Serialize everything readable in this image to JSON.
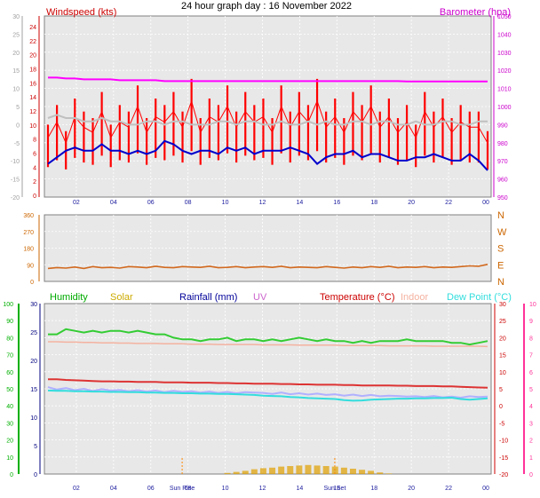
{
  "title": "24 hour graph day : 16 November 2022",
  "colors": {
    "windspeed": "#ff0000",
    "windavg": "#c0c0c0",
    "windlow": "#0000cc",
    "barometer": "#ff00ff",
    "direction": "#d2691e",
    "humidity": "#00b000",
    "humidity_line": "#33cc33",
    "solar": "#e0a000",
    "rainfall": "#000099",
    "uv": "#cc66cc",
    "temperature": "#cc0000",
    "indoor": "#f4b2a0",
    "dewpoint": "#33dddd",
    "apparent": "#b0b0ff",
    "axis_blue": "#2020a0",
    "axis_left_hum": "#00b000",
    "axis_right_pink": "#ff3399"
  },
  "chart_data": [
    {
      "type": "line",
      "panel": "wind-barometer",
      "left_label": "Windspeed (kts)",
      "right_label": "Barometer (hpa)",
      "left_ticks_outer": [
        "30",
        "25",
        "20",
        "15",
        "10",
        "5",
        "0",
        "-5",
        "-10",
        "-15",
        "-20"
      ],
      "left_ticks_inner": [
        "24",
        "22",
        "20",
        "18",
        "16",
        "14",
        "12",
        "10",
        "8",
        "6",
        "4",
        "2",
        "0"
      ],
      "right_ticks": [
        "1050",
        "1040",
        "1030",
        "1020",
        "1010",
        "1000",
        "990",
        "980",
        "970",
        "960",
        "950"
      ],
      "x_ticks": [
        "02",
        "04",
        "06",
        "08",
        "10",
        "12",
        "14",
        "16",
        "18",
        "20",
        "22",
        "00"
      ],
      "ylim": [
        0,
        25
      ],
      "baro_ylim": [
        950,
        1050
      ],
      "series": [
        {
          "key": "gust",
          "values": [
            10,
            13,
            9,
            14,
            12,
            11,
            15,
            10,
            13,
            12,
            16,
            11,
            14,
            13,
            15,
            12,
            17,
            11,
            14,
            13,
            16,
            12,
            15,
            13,
            14,
            11,
            16,
            12,
            15,
            13,
            17,
            12,
            14,
            11,
            15,
            13,
            16,
            12,
            14,
            11,
            13,
            10,
            15,
            12,
            14,
            11,
            13,
            12,
            12,
            9
          ]
        },
        {
          "key": "avg",
          "values": [
            11,
            11.5,
            11,
            11,
            10.5,
            10.5,
            11,
            10.5,
            10.5,
            10,
            10,
            10.5,
            10.5,
            10,
            10.5,
            10.5,
            10,
            10,
            10,
            10.5,
            10.5,
            10,
            10.5,
            10.5,
            10,
            10,
            10.5,
            10,
            10,
            10.5,
            10,
            10.5,
            10,
            10,
            10.5,
            10.5,
            10,
            10.5,
            10.5,
            10,
            10,
            10.5,
            10,
            10,
            10.5,
            10.5,
            10,
            10,
            10.5,
            10.5
          ]
        },
        {
          "key": "low",
          "values": [
            4,
            5,
            6,
            6.5,
            6,
            6,
            7,
            6,
            6,
            5.5,
            6,
            5.5,
            6,
            7.5,
            7,
            6,
            5.5,
            6,
            6,
            5.5,
            6.5,
            6,
            6.5,
            5.5,
            6,
            6,
            6,
            6.5,
            6,
            5.5,
            4,
            5,
            5.5,
            5.5,
            6,
            5,
            5.5,
            5.5,
            5,
            4.5,
            4.5,
            5,
            5,
            5.5,
            5,
            4.5,
            4.5,
            5.5,
            4.5,
            3
          ]
        },
        {
          "key": "baro",
          "values": [
            1016,
            1016,
            1015.5,
            1015.5,
            1015,
            1015,
            1015,
            1015,
            1014.5,
            1014.5,
            1014.5,
            1014.5,
            1014.5,
            1014,
            1014,
            1014,
            1014,
            1014,
            1014,
            1014,
            1014,
            1014,
            1014,
            1014,
            1014,
            1014,
            1014,
            1014,
            1014,
            1014,
            1014,
            1014,
            1014,
            1014,
            1014,
            1014,
            1014,
            1014,
            1014,
            1014,
            1013.8,
            1013.8,
            1013.8,
            1013.8,
            1013.8,
            1013.8,
            1013.8,
            1013.8,
            1013.8,
            1013.8
          ]
        }
      ]
    },
    {
      "type": "line",
      "panel": "wind-direction",
      "left_ticks": [
        "360",
        "270",
        "180",
        "90",
        "0"
      ],
      "right_ticks": [
        "N",
        "W",
        "S",
        "E",
        "N"
      ],
      "ylim": [
        0,
        360
      ],
      "series": [
        {
          "key": "dir",
          "values": [
            70,
            75,
            72,
            78,
            70,
            80,
            74,
            76,
            72,
            80,
            78,
            74,
            82,
            76,
            74,
            80,
            78,
            76,
            82,
            74,
            76,
            80,
            74,
            78,
            80,
            76,
            82,
            74,
            78,
            76,
            74,
            80,
            76,
            72,
            78,
            74,
            80,
            76,
            82,
            74,
            78,
            76,
            80,
            74,
            78,
            76,
            80,
            84,
            82,
            92
          ]
        }
      ]
    },
    {
      "type": "line",
      "panel": "climate",
      "legend": [
        "Humidity",
        "Solar",
        "Rainfall (mm)",
        "UV",
        "Temperature (°C)",
        "Indoor",
        "Dew Point (°C)"
      ],
      "left_outer_ticks": [
        "100",
        "90",
        "80",
        "70",
        "60",
        "50",
        "40",
        "30",
        "20",
        "10",
        "0"
      ],
      "left_inner_ticks": [
        "30",
        "25",
        "20",
        "15",
        "10",
        "5",
        "0"
      ],
      "right_inner_ticks": [
        "30",
        "25",
        "20",
        "15",
        "10",
        "5",
        "0",
        "-5",
        "-10",
        "-15",
        "-20"
      ],
      "right_outer_ticks": [
        "10",
        "9",
        "8",
        "7",
        "6",
        "5",
        "4",
        "3",
        "2",
        "1",
        "0"
      ],
      "x_ticks": [
        "02",
        "04",
        "06",
        "08",
        "10",
        "12",
        "14",
        "16",
        "18",
        "20",
        "22",
        "00"
      ],
      "sun_labels": [
        "Sun Rise",
        "Sun Set"
      ],
      "temp_ylim": [
        -20,
        30
      ],
      "humidity_ylim": [
        0,
        100
      ],
      "series": [
        {
          "key": "humidity",
          "values": [
            82,
            82,
            85,
            84,
            83,
            84,
            83,
            84,
            84,
            83,
            84,
            83,
            82,
            82,
            80,
            79,
            79,
            78,
            79,
            79,
            80,
            78,
            79,
            79,
            78,
            79,
            78,
            79,
            80,
            79,
            78,
            79,
            78,
            78,
            77,
            78,
            77,
            78,
            78,
            78,
            79,
            78,
            78,
            78,
            78,
            77,
            77,
            76,
            77,
            78
          ]
        },
        {
          "key": "indoor",
          "values": [
            18.8,
            18.8,
            18.7,
            18.7,
            18.6,
            18.6,
            18.5,
            18.5,
            18.4,
            18.4,
            18.3,
            18.3,
            18.3,
            18.2,
            18.2,
            18.2,
            18.1,
            18.1,
            18.1,
            18.0,
            18.0,
            18.0,
            18.0,
            18.0,
            17.9,
            17.9,
            17.9,
            17.9,
            17.8,
            17.8,
            17.8,
            17.8,
            17.8,
            17.7,
            17.7,
            17.7,
            17.7,
            17.7,
            17.6,
            17.6,
            17.6,
            17.6,
            17.6,
            17.5,
            17.5,
            17.5,
            17.5,
            17.5,
            17.5,
            17.4
          ]
        },
        {
          "key": "temperature",
          "values": [
            7.8,
            7.8,
            7.6,
            7.5,
            7.4,
            7.3,
            7.2,
            7.2,
            7.1,
            7.1,
            7.0,
            7.0,
            7.0,
            6.9,
            6.9,
            6.9,
            6.8,
            6.8,
            6.8,
            6.7,
            6.7,
            6.6,
            6.6,
            6.5,
            6.5,
            6.5,
            6.4,
            6.4,
            6.3,
            6.3,
            6.2,
            6.2,
            6.2,
            6.1,
            6.1,
            6.0,
            6.0,
            6.0,
            6.0,
            5.9,
            5.9,
            5.8,
            5.8,
            5.8,
            5.7,
            5.7,
            5.6,
            5.5,
            5.4,
            5.3
          ]
        },
        {
          "key": "apparent",
          "values": [
            5.5,
            4.8,
            5.2,
            4.6,
            5.0,
            4.4,
            4.9,
            4.5,
            4.7,
            4.3,
            4.6,
            4.2,
            4.5,
            4.0,
            4.4,
            4.1,
            4.3,
            3.9,
            4.2,
            3.8,
            4.1,
            3.7,
            4.0,
            3.9,
            3.8,
            3.5,
            3.9,
            3.4,
            3.7,
            3.3,
            3.6,
            3.2,
            3.4,
            3.0,
            3.3,
            2.9,
            3.2,
            2.8,
            3.0,
            2.9,
            2.7,
            2.8,
            2.6,
            2.9,
            2.5,
            2.7,
            2.4,
            2.8,
            2.6,
            2.7
          ]
        },
        {
          "key": "dewpoint",
          "values": [
            4.5,
            4.4,
            4.4,
            4.3,
            4.3,
            4.2,
            4.2,
            4.1,
            4.1,
            4.0,
            4.0,
            3.9,
            3.9,
            3.8,
            3.8,
            3.7,
            3.7,
            3.6,
            3.6,
            3.5,
            3.5,
            3.4,
            3.3,
            3.2,
            3.0,
            2.9,
            2.8,
            2.6,
            2.5,
            2.3,
            2.2,
            2.1,
            2.0,
            1.7,
            1.5,
            1.6,
            1.8,
            1.9,
            2.0,
            2.1,
            2.1,
            2.2,
            2.2,
            2.3,
            2.3,
            2.4,
            2.0,
            1.8,
            2.0,
            2.2
          ]
        },
        {
          "key": "solar",
          "values": [
            0,
            0,
            0,
            0,
            0,
            0,
            0,
            0,
            0,
            0,
            0,
            0,
            0,
            0,
            0,
            0,
            0,
            0,
            0,
            0,
            0.2,
            0.4,
            0.6,
            0.9,
            1.1,
            1.2,
            1.4,
            1.5,
            1.6,
            1.7,
            1.6,
            1.5,
            1.4,
            1.2,
            1,
            0.8,
            0.6,
            0.3,
            0.1,
            0,
            0,
            0,
            0,
            0,
            0,
            0,
            0,
            0,
            0,
            0
          ]
        }
      ]
    }
  ]
}
